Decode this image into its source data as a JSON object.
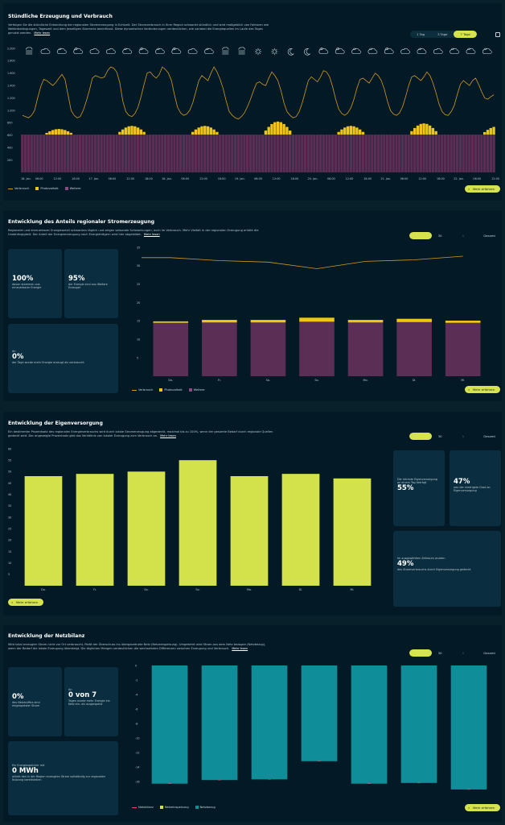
{
  "hourly": {
    "title": "Stündliche Erzeugung und Verbrauch",
    "description": "Verfolgen Sie die stündliche Entwicklung der regionalen Stromerzeugung in Echtzeit. Der Stromverbrauch in Ihrer Region schwankt stündlich und wird maßgeblich von Faktoren wie Wetterbedingungen, Tageszeit und dem jeweiligen Strommix beeinflusst. Diese dynamischen Veränderungen verdeutlichen, wie variabel die Energiequellen im Laufe des Tages genutzt werden.",
    "more_link": "Mehr lesen",
    "ranges": [
      "1 Tag",
      "3 Tage",
      "7 Tage"
    ],
    "active_range": "7 Tage",
    "weather_icons": [
      "fog-icon",
      "cloud-icon",
      "partly-cloudy-day-icon",
      "partly-cloudy-night-icon",
      "cloud-icon",
      "cloud-icon",
      "partly-cloudy-day-icon",
      "partly-cloudy-night-icon",
      "partly-cloudy-day-icon",
      "partly-cloudy-night-icon",
      "cloud-icon",
      "partly-cloudy-day-icon",
      "fog-icon",
      "fog-icon",
      "sun-icon",
      "sun-icon",
      "moon-icon",
      "moon-icon",
      "partly-cloudy-night-icon",
      "partly-cloudy-night-icon",
      "partly-cloudy-day-icon",
      "partly-cloudy-day-icon",
      "partly-cloudy-night-icon",
      "cloud-icon",
      "partly-cloudy-day-icon",
      "cloud-icon",
      "partly-cloudy-day-icon",
      "partly-cloudy-day-icon",
      "partly-cloudy-day-icon"
    ],
    "legend": [
      "Verbrauch",
      "Photovoltaik",
      "Weitere"
    ],
    "more_button": "Mehr erfahren",
    "colors": {
      "consumption": "#d19a1e",
      "pv": "#f0c419",
      "other": "#5a2e55"
    }
  },
  "chart_data": [
    {
      "type": "bar",
      "title": "Stündliche Erzeugung und Verbrauch",
      "y_ticks": [
        "2.000",
        "1.800",
        "1.600",
        "1.400",
        "1.200",
        "1.000",
        "800",
        "600",
        "400",
        "200",
        ""
      ],
      "ylim": [
        0,
        2000
      ],
      "x_ticks": [
        "16. Jan.",
        "06:00",
        "12:00",
        "18:00",
        "17. Jan.",
        "06:00",
        "12:00",
        "18:00",
        "18. Jan.",
        "06:00",
        "12:00",
        "18:00",
        "19. Jan.",
        "06:00",
        "12:00",
        "18:00",
        "20. Jan.",
        "06:00",
        "12:00",
        "18:00",
        "21. Jan.",
        "06:00",
        "12:00",
        "18:00",
        "22. Jan.",
        "06:00",
        "12:00"
      ],
      "other_per_hour": 610,
      "pv_daily_peak": [
        90,
        140,
        140,
        210,
        140,
        180,
        130
      ],
      "consumption": [
        920,
        900,
        880,
        920,
        1000,
        1200,
        1380,
        1500,
        1480,
        1440,
        1400,
        1450,
        1520,
        1580,
        1500,
        1250,
        1000,
        920,
        880,
        900,
        1000,
        1150,
        1320,
        1520,
        1560,
        1540,
        1520,
        1540,
        1640,
        1700,
        1680,
        1620,
        1450,
        1150,
        980,
        920,
        900,
        950,
        1050,
        1220,
        1420,
        1600,
        1620,
        1560,
        1520,
        1580,
        1700,
        1660,
        1600,
        1480,
        1250,
        1050,
        960,
        920,
        940,
        1000,
        1120,
        1300,
        1480,
        1560,
        1520,
        1480,
        1600,
        1700,
        1620,
        1500,
        1350,
        1150,
        980,
        920,
        880,
        860,
        900,
        960,
        1060,
        1180,
        1320,
        1440,
        1460,
        1420,
        1400,
        1520,
        1620,
        1560,
        1480,
        1320,
        1120,
        980,
        920,
        880,
        900,
        980,
        1120,
        1300,
        1480,
        1540,
        1500,
        1460,
        1540,
        1640,
        1620,
        1540,
        1380,
        1180,
        1020,
        950,
        920,
        960,
        1040,
        1180,
        1360,
        1500,
        1520,
        1480,
        1440,
        1520,
        1600,
        1560,
        1480,
        1340,
        1150,
        1000,
        940,
        920,
        960,
        1060,
        1220,
        1400,
        1540,
        1560,
        1520,
        1480,
        1540,
        1620,
        1560,
        1440,
        1280,
        1100,
        980,
        930,
        920,
        980,
        1080,
        1260,
        1420,
        1480,
        1440,
        1400,
        1480,
        1520,
        1420,
        1300,
        1200,
        1180,
        1220,
        1250
      ]
    },
    {
      "type": "bar",
      "title": "Entwicklung des Anteils regionaler Stromerzeugung",
      "categories": [
        "Do.",
        "Fr.",
        "Sa.",
        "So.",
        "Mo.",
        "Di.",
        "Mi."
      ],
      "y_ticks": [
        "35",
        "30",
        "25",
        "20",
        "15",
        "10",
        "5"
      ],
      "ylim": [
        0,
        35
      ],
      "series": [
        {
          "name": "Weitere",
          "values": [
            14.5,
            14.6,
            14.6,
            14.8,
            14.6,
            14.7,
            14.5
          ]
        },
        {
          "name": "Photovoltaik",
          "values": [
            0.4,
            0.7,
            0.7,
            1.1,
            0.7,
            0.9,
            0.6
          ]
        },
        {
          "name": "Verbrauch",
          "values": [
            32.2,
            31.4,
            31.0,
            29.2,
            31.2,
            31.6,
            32.6
          ]
        }
      ]
    },
    {
      "type": "bar",
      "title": "Entwicklung der Eigenversorgung",
      "categories": [
        "Do.",
        "Fr.",
        "Sa.",
        "So.",
        "Mo.",
        "Di.",
        "Mi."
      ],
      "y_ticks": [
        "60",
        "55",
        "50",
        "45",
        "40",
        "35",
        "30",
        "25",
        "20",
        "15",
        "10",
        "5"
      ],
      "ylim": [
        0,
        60
      ],
      "values": [
        48,
        49,
        50,
        55,
        48,
        49,
        47
      ]
    },
    {
      "type": "bar",
      "title": "Entwicklung der Netzbilanz",
      "categories": [
        "Do.",
        "Fr.",
        "Sa.",
        "So.",
        "Mo.",
        "Di.",
        "Mi."
      ],
      "y_ticks": [
        "0",
        "-2",
        "-4",
        "-6",
        "-8",
        "-10",
        "-12",
        "-14",
        "-16"
      ],
      "ylim": [
        -18,
        0
      ],
      "series": [
        {
          "name": "Netzbezug",
          "values": [
            -16.3,
            -15.8,
            -15.7,
            -13.2,
            -16.3,
            -16.2,
            -17.1
          ]
        },
        {
          "name": "Netzeinspeisung",
          "values": [
            0,
            0,
            0,
            0,
            0,
            0,
            0
          ]
        },
        {
          "name": "Netzbilanz",
          "values": [
            -16.3,
            -15.8,
            -15.7,
            -13.2,
            -16.3,
            -16.2,
            -17.1
          ]
        }
      ]
    }
  ],
  "share": {
    "title": "Entwicklung des Anteils regionaler Stromerzeugung",
    "description": "Regionaler und erneuerbarer Energieanteil schwanken täglich und zeigen saisonale Schwankungen, auch im Verbrauch. Mehr Vielfalt in der regionalen Erzeugung erhöht die Unabhängigkeit. Der Anteil der Energieerzeugung nach Energieträgern wird hier abgebildet.",
    "more_link": "Mehr lesen",
    "ranges": [
      "7 Tage",
      "30 Tage",
      "1 Jahr",
      "Gesamt"
    ],
    "active_range": "7 Tage",
    "card1_value": "100%",
    "card1_text": "davon stammen aus erneuerbarer Energie",
    "card2_value": "95%",
    "card2_text": "der Energie sind aus Weitere Erzeuger",
    "card3_prefix": "An",
    "card3_value": "0%",
    "card3_text": "der Tage wurde mehr Energie erzeugt als verbraucht",
    "legend": [
      "Verbrauch",
      "Photovoltaik",
      "Weitere"
    ],
    "more_button": "Mehr erfahren"
  },
  "self": {
    "title": "Entwicklung der Eigenversorgung",
    "description": "Ein bestimmter Prozentsatz des regionalen Energieverbrauchs wird durch lokale Stromerzeugung abgedeckt, maximal bis zu 100%, wenn der gesamte Bedarf durch regionale Quellen gedeckt wird. Der angezeigte Prozentsatz gibt das Verhältnis von lokaler Erzeugung zum Verbrauch an.",
    "more_link": "Mehr lesen",
    "ranges": [
      "7 Tage",
      "30 Tage",
      "1 Jahr",
      "Gesamt"
    ],
    "active_range": "7 Tage",
    "card1_text": "Die höchste Eigenversorgung an einem Tag beträgt",
    "card1_value": "55%",
    "card2_value": "47%",
    "card2_text": "war der niedrigste Grad an Eigenversorgung",
    "card3_text": "Im ausgewählten Zeitraum wurden",
    "card3_value": "49%",
    "card3_text2": "des Stromverbrauchs durch Eigenversorgung gedeckt",
    "more_button": "Mehr erfahren",
    "bar_color": "#d3e14a"
  },
  "grid": {
    "title": "Entwicklung der Netzbilanz",
    "description": "Wird lokal erzeugter Strom nicht vor Ort verbraucht, fließt der Überschuss ins übergeordnete Netz (Netzeinspeisung). Umgekehrt wird Strom aus dem Netz bezogen (Netzbezug), wenn der Bedarf die lokale Erzeugung übersteigt. Die täglichen Mengen verdeutlichen die wechselnden Differenzen zwischen Erzeugung und Verbrauch.",
    "more_link": "Mehr lesen",
    "ranges": [
      "7 Tage",
      "30 Tage",
      "1 Jahr",
      "Gesamt"
    ],
    "active_range": "7 Tage",
    "card1_value": "0%",
    "card1_text": "des Netztraffics sind eingespeister Strom",
    "card2_prefix": "An",
    "card2_value": "0 von 7",
    "card2_text": "Tagen wurde mehr Energie ins Netz ein- als ausgespeist",
    "card3_text": "Ein Energiespeicher mit",
    "card3_value": "0 MWh",
    "card3_text2": "würde den in der Region erzeugten Strom vollständig zur regionalen Nutzung bereitstellen",
    "legend": [
      "Netzbilanz",
      "Netzeinspeisung",
      "Netzbezug"
    ],
    "more_button": "Mehr erfahren",
    "bar_color": "#0f8d98"
  }
}
